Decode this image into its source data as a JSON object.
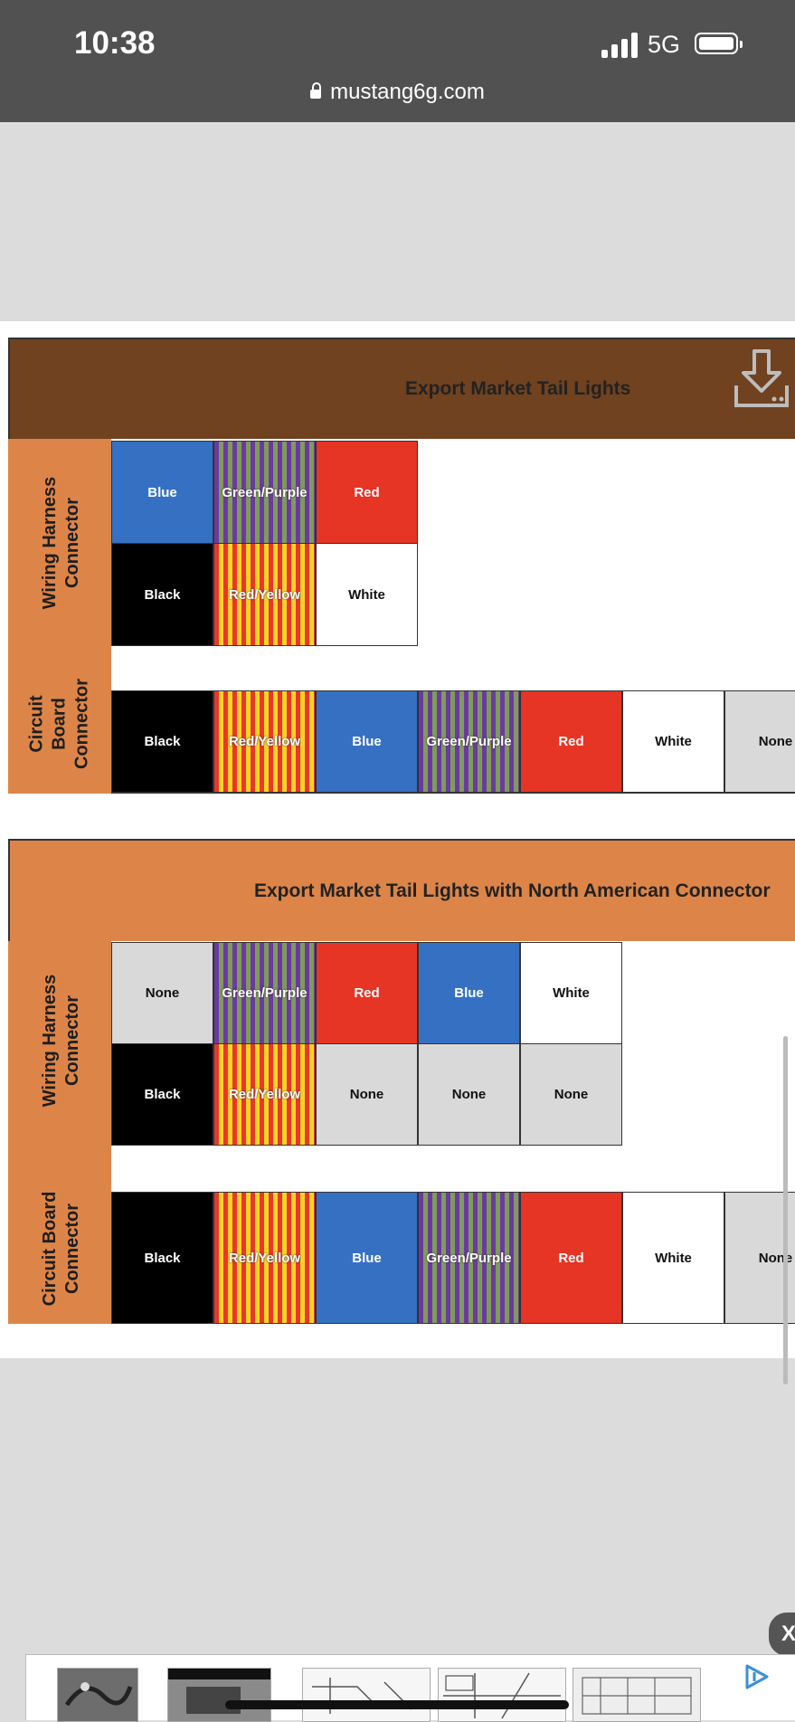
{
  "status_bar": {
    "time": "10:38",
    "network": "5G",
    "url": "mustang6g.com"
  },
  "colors": {
    "Blue": "#3670c2",
    "Red": "#e63425",
    "Black": "#000000",
    "White": "#ffffff",
    "None": "#d9d9d9",
    "orange": "#dd8548",
    "brown": "#70421f"
  },
  "diagram1": {
    "title": "Export Market Tail Lights",
    "harness_label": [
      "Wiring Harness",
      "Connector"
    ],
    "board_label": [
      "Circuit",
      "Board",
      "Connector"
    ],
    "harness_rows": [
      [
        "Blue",
        "Green/Purple",
        "Red"
      ],
      [
        "Black",
        "Red/Yellow",
        "White"
      ]
    ],
    "board_row": [
      "Black",
      "Red/Yellow",
      "Blue",
      "Green/Purple",
      "Red",
      "White",
      "None"
    ]
  },
  "diagram2": {
    "title": "Export Market Tail Lights with North American Connector",
    "harness_label": [
      "Wiring Harness",
      "Connector"
    ],
    "board_label": [
      "Circuit Board",
      "Connector"
    ],
    "harness_rows": [
      [
        "None",
        "Green/Purple",
        "Red",
        "Blue",
        "White"
      ],
      [
        "Black",
        "Red/Yellow",
        "None",
        "None",
        "None"
      ]
    ],
    "board_row": [
      "Black",
      "Red/Yellow",
      "Blue",
      "Green/Purple",
      "Red",
      "White",
      "None"
    ]
  },
  "icons": [
    "download-icon",
    "lock-icon",
    "adchoices-icon",
    "close-icon"
  ],
  "ad": {
    "close": "X"
  }
}
